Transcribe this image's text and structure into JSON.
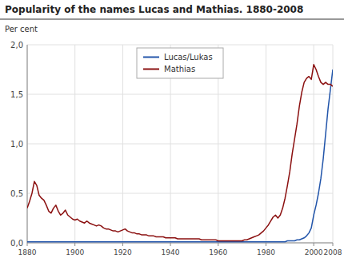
{
  "chart_data": {
    "type": "line",
    "title": "Popularity of the names Lucas and Mathias. 1880-2008",
    "ylabel": "Per cent",
    "x": [
      1880,
      1881,
      1882,
      1883,
      1884,
      1885,
      1886,
      1887,
      1888,
      1889,
      1890,
      1891,
      1892,
      1893,
      1894,
      1895,
      1896,
      1897,
      1898,
      1899,
      1900,
      1901,
      1902,
      1903,
      1904,
      1905,
      1906,
      1907,
      1908,
      1909,
      1910,
      1911,
      1912,
      1913,
      1914,
      1915,
      1916,
      1917,
      1918,
      1919,
      1920,
      1921,
      1922,
      1923,
      1924,
      1925,
      1926,
      1927,
      1928,
      1929,
      1930,
      1931,
      1932,
      1933,
      1934,
      1935,
      1936,
      1937,
      1938,
      1939,
      1940,
      1941,
      1942,
      1943,
      1944,
      1945,
      1946,
      1947,
      1948,
      1949,
      1950,
      1951,
      1952,
      1953,
      1954,
      1955,
      1956,
      1957,
      1958,
      1959,
      1960,
      1961,
      1962,
      1963,
      1964,
      1965,
      1966,
      1967,
      1968,
      1969,
      1970,
      1971,
      1972,
      1973,
      1974,
      1975,
      1976,
      1977,
      1978,
      1979,
      1980,
      1981,
      1982,
      1983,
      1984,
      1985,
      1986,
      1987,
      1988,
      1989,
      1990,
      1991,
      1992,
      1993,
      1994,
      1995,
      1996,
      1997,
      1998,
      1999,
      2000,
      2001,
      2002,
      2003,
      2004,
      2005,
      2006,
      2007,
      2008
    ],
    "series": [
      {
        "name": "Lucas/Lukas",
        "color": "#2255aa",
        "values": [
          0.01,
          0.01,
          0.01,
          0.01,
          0.01,
          0.01,
          0.01,
          0.01,
          0.01,
          0.01,
          0.01,
          0.01,
          0.01,
          0.01,
          0.01,
          0.01,
          0.01,
          0.01,
          0.01,
          0.01,
          0.01,
          0.01,
          0.01,
          0.01,
          0.01,
          0.01,
          0.01,
          0.01,
          0.01,
          0.01,
          0.01,
          0.01,
          0.01,
          0.01,
          0.01,
          0.01,
          0.01,
          0.01,
          0.01,
          0.01,
          0.01,
          0.01,
          0.01,
          0.01,
          0.01,
          0.01,
          0.01,
          0.01,
          0.01,
          0.01,
          0.01,
          0.01,
          0.01,
          0.01,
          0.01,
          0.01,
          0.01,
          0.01,
          0.01,
          0.01,
          0.01,
          0.01,
          0.01,
          0.01,
          0.01,
          0.01,
          0.01,
          0.01,
          0.01,
          0.01,
          0.01,
          0.01,
          0.01,
          0.01,
          0.01,
          0.01,
          0.01,
          0.01,
          0.01,
          0.01,
          0.01,
          0.01,
          0.01,
          0.01,
          0.01,
          0.01,
          0.01,
          0.01,
          0.01,
          0.01,
          0.01,
          0.01,
          0.01,
          0.01,
          0.01,
          0.01,
          0.01,
          0.01,
          0.01,
          0.01,
          0.01,
          0.01,
          0.01,
          0.01,
          0.01,
          0.01,
          0.01,
          0.01,
          0.01,
          0.02,
          0.02,
          0.02,
          0.02,
          0.03,
          0.03,
          0.04,
          0.05,
          0.07,
          0.1,
          0.15,
          0.28,
          0.38,
          0.5,
          0.65,
          0.85,
          1.1,
          1.35,
          1.55,
          1.75
        ]
      },
      {
        "name": "Mathias",
        "color": "#8b1010",
        "values": [
          0.35,
          0.42,
          0.5,
          0.62,
          0.58,
          0.48,
          0.45,
          0.43,
          0.38,
          0.32,
          0.3,
          0.35,
          0.38,
          0.32,
          0.28,
          0.3,
          0.33,
          0.28,
          0.26,
          0.24,
          0.23,
          0.24,
          0.22,
          0.21,
          0.2,
          0.22,
          0.2,
          0.19,
          0.18,
          0.17,
          0.18,
          0.17,
          0.15,
          0.14,
          0.14,
          0.13,
          0.12,
          0.12,
          0.11,
          0.12,
          0.13,
          0.14,
          0.12,
          0.11,
          0.1,
          0.1,
          0.09,
          0.09,
          0.08,
          0.08,
          0.08,
          0.07,
          0.07,
          0.07,
          0.06,
          0.06,
          0.06,
          0.06,
          0.05,
          0.05,
          0.05,
          0.05,
          0.05,
          0.04,
          0.04,
          0.04,
          0.04,
          0.04,
          0.04,
          0.04,
          0.04,
          0.04,
          0.04,
          0.03,
          0.03,
          0.03,
          0.03,
          0.03,
          0.03,
          0.03,
          0.02,
          0.02,
          0.02,
          0.02,
          0.02,
          0.02,
          0.02,
          0.02,
          0.02,
          0.02,
          0.02,
          0.03,
          0.03,
          0.04,
          0.05,
          0.06,
          0.07,
          0.08,
          0.1,
          0.12,
          0.15,
          0.18,
          0.22,
          0.26,
          0.28,
          0.25,
          0.28,
          0.35,
          0.45,
          0.58,
          0.72,
          0.9,
          1.05,
          1.2,
          1.38,
          1.52,
          1.62,
          1.66,
          1.68,
          1.65,
          1.8,
          1.75,
          1.68,
          1.62,
          1.6,
          1.62,
          1.6,
          1.6,
          1.58
        ]
      }
    ],
    "xlim": [
      1880,
      2008
    ],
    "xticks": [
      1880,
      1900,
      1920,
      1940,
      1960,
      1980,
      2000,
      2008
    ],
    "ylim": [
      0.0,
      2.0
    ],
    "yticks": [
      {
        "value": 0.0,
        "label": "0,0"
      },
      {
        "value": 0.5,
        "label": "0,5"
      },
      {
        "value": 1.0,
        "label": "1,0"
      },
      {
        "value": 1.5,
        "label": "1,5"
      },
      {
        "value": 2.0,
        "label": "2,0"
      }
    ],
    "grid": true,
    "legend": "upper center"
  }
}
